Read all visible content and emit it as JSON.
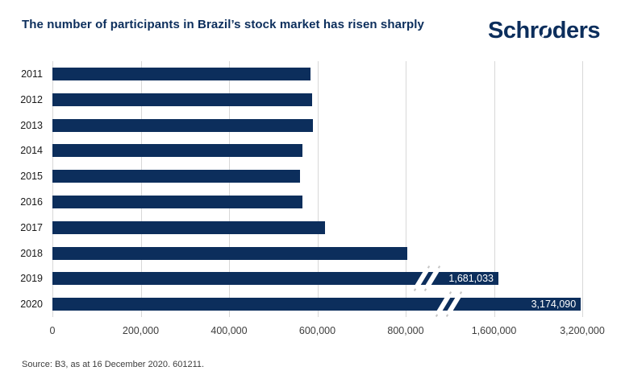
{
  "header": {
    "title": "The number of participants in Brazil’s stock market has risen sharply",
    "logo": {
      "name": "Schroders",
      "pre": "Schr",
      "slashed": "o",
      "post": "ders"
    }
  },
  "chart_data": {
    "type": "bar",
    "orientation": "horizontal",
    "title": "The number of participants in Brazil’s stock market has risen sharply",
    "categories": [
      "2011",
      "2012",
      "2013",
      "2014",
      "2015",
      "2016",
      "2017",
      "2018",
      "2019",
      "2020"
    ],
    "values": [
      585000,
      588000,
      590000,
      566000,
      561000,
      566000,
      618000,
      815000,
      1681033,
      3174090
    ],
    "value_labels": {
      "2019": "1,681,033",
      "2020": "3,174,090"
    },
    "broken_axis_years": [
      "2019",
      "2020"
    ],
    "x_ticks": [
      "0",
      "200,000",
      "400,000",
      "600,000",
      "800,000",
      "1,600,000",
      "3,200,000"
    ],
    "x_tick_values": [
      0,
      200000,
      400000,
      600000,
      800000,
      1600000,
      3200000
    ],
    "axis_break": "x-axis compressed after 800,000 (equal spacing per tick: 200,000 steps, then 800,000 step, then 1,600,000 step)",
    "grid": true,
    "legend": false,
    "colors": {
      "bar": "#0C2E5C",
      "gridline": "#D8D8D8",
      "value_label_text": "#ffffff"
    }
  },
  "footer": {
    "source": "Source: B3, as at 16 December 2020. 601211."
  }
}
